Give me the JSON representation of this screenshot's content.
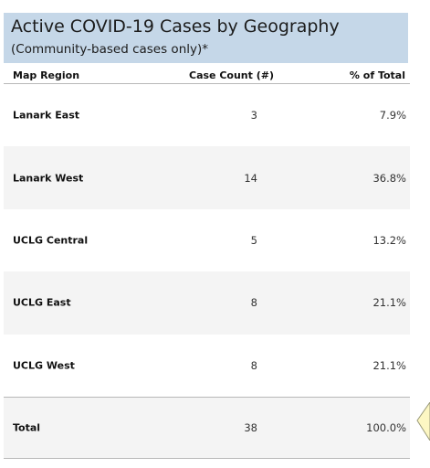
{
  "header": {
    "title": "Active COVID-19 Cases by Geography",
    "subtitle": "(Community-based cases only)*",
    "background_color": "#c5d7e8"
  },
  "columns": {
    "region": "Map Region",
    "count": "Case Count (#)",
    "percent": "% of Total"
  },
  "rows": [
    {
      "region": "Lanark East",
      "count": "3",
      "percent": "7.9%"
    },
    {
      "region": "Lanark West",
      "count": "14",
      "percent": "36.8%"
    },
    {
      "region": "UCLG Central",
      "count": "5",
      "percent": "13.2%"
    },
    {
      "region": "UCLG East",
      "count": "8",
      "percent": "21.1%"
    },
    {
      "region": "UCLG West",
      "count": "8",
      "percent": "21.1%"
    },
    {
      "region": "Total",
      "count": "38",
      "percent": "100.0%"
    }
  ],
  "colors": {
    "row_shade": "#f4f4f4",
    "rule": "#b8b8b8",
    "tooltip_fill": "#fdf7c3"
  }
}
